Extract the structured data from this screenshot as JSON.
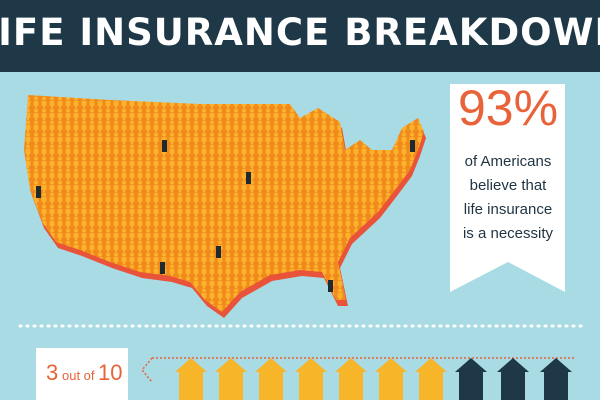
{
  "header": {
    "title": "LIFE INSURANCE BREAKDOWN"
  },
  "stat": {
    "value": "93%",
    "lines": [
      "of Americans",
      "believe that",
      "life insurance",
      "is a necessity"
    ]
  },
  "callout": {
    "number": "3",
    "text": "out of",
    "total": "10"
  }
}
